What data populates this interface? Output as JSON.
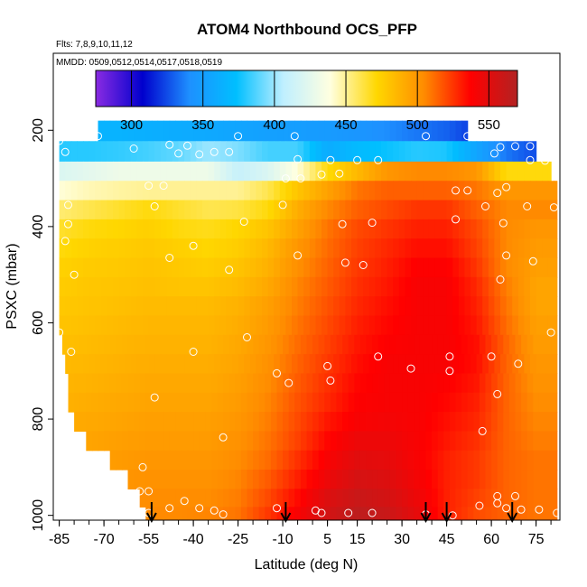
{
  "chart_data": {
    "type": "heatmap",
    "title": "ATOM4 Northbound OCS_PFP",
    "subtitle_flights": "Flts: 7,8,9,10,11,12",
    "subtitle_dates": "MMDD: 0509,0512,0514,0517,0518,0519",
    "xlabel": "Latitude (deg N)",
    "ylabel": "PSXC (mbar)",
    "xlim": [
      -87,
      83
    ],
    "ylim": [
      1010,
      40
    ],
    "y_reversed": true,
    "x_ticks": [
      -85,
      -70,
      -55,
      -40,
      -25,
      -10,
      5,
      15,
      30,
      45,
      60,
      75
    ],
    "y_ticks": [
      200,
      400,
      600,
      800,
      1000
    ],
    "colorbar": {
      "range": [
        275,
        570
      ],
      "ticks": [
        300,
        350,
        400,
        450,
        500,
        550
      ],
      "colors": [
        "#8a2be2",
        "#0000cd",
        "#1e90ff",
        "#00bfff",
        "#bfefff",
        "#ffffe0",
        "#ffd700",
        "#ff8c00",
        "#ff0000",
        "#b22222"
      ]
    },
    "profile_latitudes": [
      -54,
      -9,
      38,
      45,
      67
    ],
    "pressure_rows": [
      200,
      245,
      285,
      325,
      365,
      405,
      445,
      485,
      525,
      565,
      605,
      645,
      685,
      725,
      765,
      805,
      845,
      885,
      925,
      965,
      1000
    ],
    "row_extents": [
      [
        -72,
        52
      ],
      [
        -85,
        75
      ],
      [
        -85,
        80
      ],
      [
        -85,
        82
      ],
      [
        -85,
        82
      ],
      [
        -85,
        82
      ],
      [
        -85,
        82
      ],
      [
        -85,
        82
      ],
      [
        -85,
        82
      ],
      [
        -85,
        82
      ],
      [
        -85,
        82
      ],
      [
        -84,
        82
      ],
      [
        -83,
        82
      ],
      [
        -82,
        82
      ],
      [
        -82,
        82
      ],
      [
        -80,
        82
      ],
      [
        -76,
        82
      ],
      [
        -68,
        82
      ],
      [
        -62,
        82
      ],
      [
        -58,
        82
      ],
      [
        -56,
        82
      ]
    ],
    "node_lats": [
      -85,
      -75,
      -65,
      -55,
      -45,
      -35,
      -25,
      -15,
      -5,
      5,
      15,
      25,
      35,
      45,
      55,
      65,
      75,
      82
    ],
    "ocs_grid": [
      [
        365,
        365,
        365,
        362,
        360,
        358,
        355,
        352,
        350,
        348,
        345,
        340,
        335,
        330,
        320,
        300,
        290,
        290
      ],
      [
        380,
        380,
        382,
        385,
        390,
        400,
        395,
        385,
        385,
        360,
        370,
        375,
        380,
        378,
        355,
        335,
        325,
        325
      ],
      [
        420,
        425,
        430,
        430,
        430,
        430,
        410,
        420,
        440,
        470,
        485,
        500,
        505,
        505,
        500,
        470,
        470,
        470
      ],
      [
        440,
        445,
        448,
        450,
        450,
        450,
        450,
        460,
        480,
        495,
        510,
        515,
        515,
        515,
        510,
        500,
        500,
        500
      ],
      [
        455,
        460,
        465,
        470,
        465,
        460,
        462,
        470,
        490,
        505,
        515,
        520,
        525,
        525,
        515,
        505,
        505,
        505
      ],
      [
        465,
        470,
        472,
        475,
        470,
        468,
        472,
        480,
        495,
        510,
        520,
        525,
        530,
        530,
        520,
        505,
        500,
        500
      ],
      [
        470,
        474,
        476,
        478,
        475,
        472,
        476,
        485,
        500,
        512,
        522,
        528,
        534,
        534,
        522,
        505,
        498,
        498
      ],
      [
        474,
        477,
        478,
        480,
        478,
        476,
        480,
        488,
        503,
        514,
        524,
        530,
        538,
        538,
        525,
        505,
        496,
        496
      ],
      [
        476,
        479,
        480,
        482,
        480,
        480,
        484,
        492,
        506,
        516,
        526,
        532,
        540,
        540,
        528,
        508,
        494,
        494
      ],
      [
        478,
        480,
        482,
        484,
        484,
        484,
        488,
        496,
        508,
        518,
        528,
        534,
        540,
        540,
        530,
        510,
        494,
        494
      ],
      [
        480,
        482,
        484,
        486,
        486,
        486,
        490,
        498,
        510,
        520,
        530,
        536,
        540,
        540,
        532,
        512,
        496,
        496
      ],
      [
        482,
        484,
        486,
        488,
        488,
        488,
        492,
        500,
        512,
        522,
        532,
        538,
        540,
        540,
        534,
        514,
        498,
        498
      ],
      [
        484,
        486,
        488,
        490,
        490,
        490,
        494,
        502,
        514,
        524,
        534,
        540,
        540,
        540,
        534,
        514,
        500,
        500
      ],
      [
        486,
        488,
        490,
        492,
        492,
        492,
        496,
        504,
        516,
        526,
        536,
        540,
        540,
        538,
        532,
        514,
        502,
        502
      ],
      [
        488,
        490,
        492,
        494,
        494,
        494,
        498,
        506,
        518,
        528,
        538,
        540,
        540,
        536,
        530,
        514,
        504,
        504
      ],
      [
        490,
        492,
        494,
        496,
        496,
        496,
        500,
        508,
        520,
        532,
        540,
        542,
        540,
        534,
        528,
        514,
        506,
        506
      ],
      [
        492,
        494,
        496,
        498,
        498,
        498,
        502,
        510,
        522,
        536,
        545,
        545,
        540,
        532,
        526,
        514,
        508,
        508
      ],
      [
        494,
        496,
        498,
        500,
        500,
        500,
        504,
        512,
        526,
        540,
        550,
        548,
        540,
        530,
        524,
        514,
        510,
        510
      ],
      [
        496,
        498,
        500,
        502,
        502,
        502,
        506,
        516,
        530,
        545,
        555,
        552,
        542,
        530,
        524,
        514,
        510,
        510
      ],
      [
        498,
        500,
        502,
        504,
        504,
        504,
        508,
        520,
        535,
        552,
        560,
        556,
        545,
        530,
        522,
        514,
        510,
        510
      ],
      [
        500,
        502,
        504,
        505,
        505,
        506,
        510,
        524,
        540,
        556,
        565,
        560,
        548,
        530,
        520,
        514,
        510,
        510
      ]
    ],
    "samples": [
      [
        -72,
        212
      ],
      [
        -25,
        212
      ],
      [
        -6,
        212
      ],
      [
        38,
        212
      ],
      [
        52,
        212
      ],
      [
        -85,
        222
      ],
      [
        -48,
        230
      ],
      [
        -42,
        232
      ],
      [
        63,
        235
      ],
      [
        68,
        233
      ],
      [
        73,
        233
      ],
      [
        -83,
        245
      ],
      [
        -60,
        238
      ],
      [
        -45,
        248
      ],
      [
        -38,
        250
      ],
      [
        61,
        248
      ],
      [
        -33,
        245
      ],
      [
        -28,
        245
      ],
      [
        73,
        262
      ],
      [
        78,
        263
      ],
      [
        -5,
        260
      ],
      [
        6,
        262
      ],
      [
        15,
        262
      ],
      [
        22,
        262
      ],
      [
        3,
        292
      ],
      [
        -9,
        300
      ],
      [
        -4,
        300
      ],
      [
        9,
        290
      ],
      [
        -55,
        315
      ],
      [
        -50,
        315
      ],
      [
        65,
        318
      ],
      [
        48,
        325
      ],
      [
        52,
        325
      ],
      [
        62,
        330
      ],
      [
        -82,
        355
      ],
      [
        -53,
        358
      ],
      [
        -10,
        355
      ],
      [
        58,
        358
      ],
      [
        72,
        358
      ],
      [
        81,
        360
      ],
      [
        -82,
        395
      ],
      [
        -23,
        390
      ],
      [
        10,
        395
      ],
      [
        20,
        392
      ],
      [
        48,
        385
      ],
      [
        64,
        393
      ],
      [
        -83,
        430
      ],
      [
        -40,
        440
      ],
      [
        -5,
        460
      ],
      [
        -48,
        465
      ],
      [
        11,
        475
      ],
      [
        17,
        480
      ],
      [
        65,
        460
      ],
      [
        74,
        472
      ],
      [
        -80,
        500
      ],
      [
        -28,
        490
      ],
      [
        63,
        510
      ],
      [
        -85,
        620
      ],
      [
        -22,
        630
      ],
      [
        80,
        620
      ],
      [
        -81,
        660
      ],
      [
        -40,
        660
      ],
      [
        22,
        670
      ],
      [
        46,
        670
      ],
      [
        60,
        670
      ],
      [
        69,
        685
      ],
      [
        5,
        690
      ],
      [
        33,
        695
      ],
      [
        -12,
        705
      ],
      [
        46,
        700
      ],
      [
        -8,
        725
      ],
      [
        6,
        720
      ],
      [
        -53,
        755
      ],
      [
        62,
        748
      ],
      [
        -82,
        815
      ],
      [
        -30,
        838
      ],
      [
        57,
        825
      ],
      [
        -57,
        900
      ],
      [
        -58,
        950
      ],
      [
        -55,
        950
      ],
      [
        -43,
        970
      ],
      [
        -48,
        985
      ],
      [
        -38,
        985
      ],
      [
        -33,
        990
      ],
      [
        -12,
        985
      ],
      [
        1,
        990
      ],
      [
        3,
        995
      ],
      [
        12,
        995
      ],
      [
        20,
        995
      ],
      [
        -55,
        995
      ],
      [
        -30,
        998
      ],
      [
        38,
        998
      ],
      [
        47,
        1000
      ],
      [
        56,
        980
      ],
      [
        62,
        975
      ],
      [
        65,
        985
      ],
      [
        70,
        988
      ],
      [
        76,
        988
      ],
      [
        82,
        995
      ],
      [
        68,
        960
      ],
      [
        62,
        960
      ]
    ]
  }
}
